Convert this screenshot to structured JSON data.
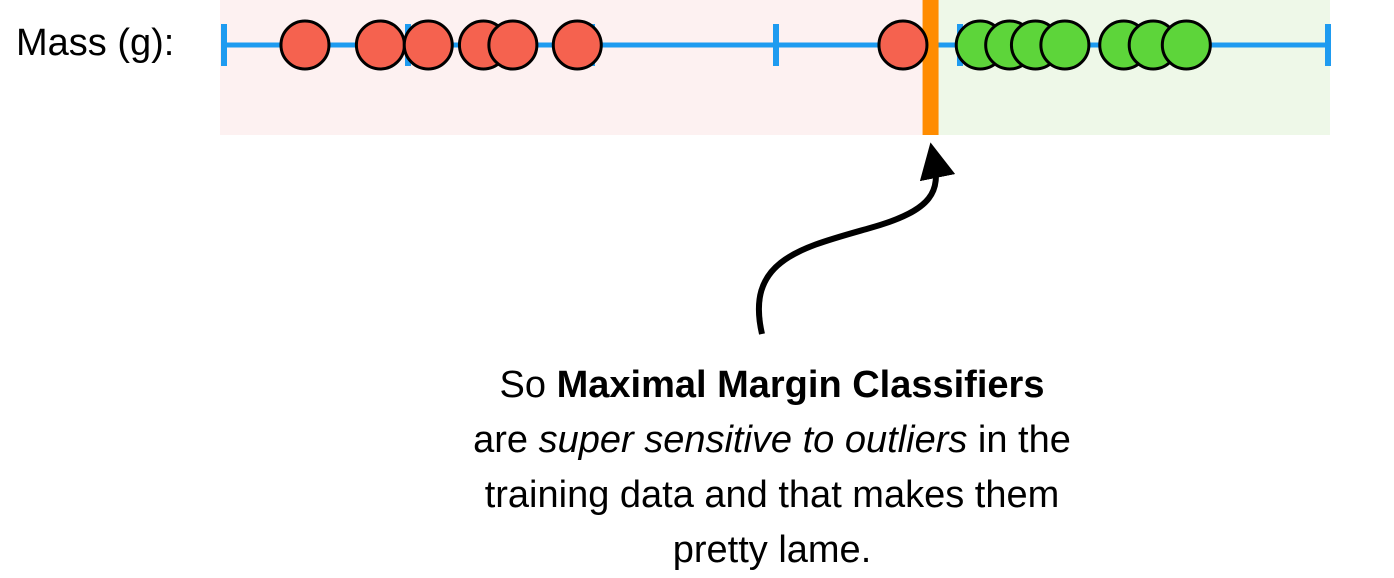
{
  "axis": {
    "label": "Mass (g):",
    "line_color": "#1e9bf0"
  },
  "regions": {
    "left_color": "#fdf1f1",
    "right_color": "#eef8e8"
  },
  "threshold": {
    "color": "#ff8c00",
    "position": 0.64
  },
  "point_style": {
    "red_fill": "#f5624f",
    "green_fill": "#5dd53a",
    "stroke": "#000000"
  },
  "chart_data": {
    "type": "scatter",
    "axis_ticks": [
      0,
      1,
      2,
      3,
      4,
      5,
      6
    ],
    "xlim": [
      0,
      6
    ],
    "threshold_x": 3.84,
    "series": [
      {
        "class": "red",
        "x": [
          0.44,
          0.85,
          1.11,
          1.41,
          1.57,
          1.92,
          3.69
        ]
      },
      {
        "class": "green",
        "x": [
          4.11,
          4.27,
          4.41,
          4.57,
          4.89,
          5.05,
          5.23
        ]
      }
    ]
  },
  "caption": {
    "line1_prefix": "So ",
    "line1_bold": "Maximal Margin Classifiers",
    "line2_prefix": "are ",
    "line2_italic": "super sensitive to outliers",
    "line2_suffix": " in the",
    "line3": "training data and that makes them",
    "line4": "pretty lame."
  }
}
